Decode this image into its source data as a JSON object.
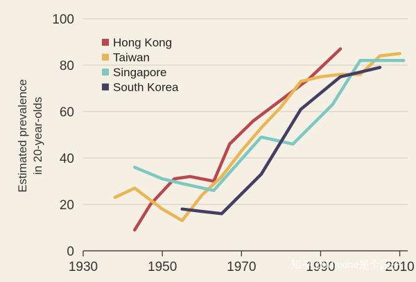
{
  "chart_data": {
    "type": "line",
    "ylabel": [
      "Estimated prevalence",
      "in 20-year-olds"
    ],
    "xlim": [
      1930,
      2012
    ],
    "ylim": [
      0,
      100
    ],
    "xticks": [
      1930,
      1950,
      1970,
      1990,
      2010
    ],
    "yticks": [
      0,
      20,
      40,
      60,
      80,
      100
    ],
    "grid": "horizontal",
    "legend": "top-left",
    "series": [
      {
        "name": "Hong Kong",
        "color": "#b7484e",
        "x": [
          1943,
          1947,
          1953,
          1957,
          1963,
          1967,
          1973,
          1980,
          1987,
          1995
        ],
        "y": [
          9,
          20,
          31,
          32,
          30,
          46,
          56,
          65,
          74,
          87
        ]
      },
      {
        "name": "Taiwan",
        "color": "#e9b655",
        "x": [
          1938,
          1943,
          1950,
          1955,
          1960,
          1965,
          1970,
          1975,
          1980,
          1985,
          1990,
          1995,
          2000,
          2005,
          2010
        ],
        "y": [
          23,
          27,
          18,
          13,
          24,
          32,
          43,
          53,
          62,
          73,
          75,
          76,
          76,
          84,
          85
        ]
      },
      {
        "name": "Singapore",
        "color": "#7cc9c2",
        "x": [
          1943,
          1950,
          1955,
          1963,
          1975,
          1983,
          1993,
          2000,
          2005,
          2011
        ],
        "y": [
          36,
          31,
          29,
          26,
          49,
          46,
          63,
          82,
          82,
          82
        ]
      },
      {
        "name": "South Korea",
        "color": "#433e64",
        "x": [
          1955,
          1960,
          1965,
          1975,
          1985,
          1995,
          2005
        ],
        "y": [
          18,
          17,
          16,
          33,
          61,
          75,
          79
        ]
      }
    ]
  },
  "watermark": "知乎 @Maxine是个园子"
}
